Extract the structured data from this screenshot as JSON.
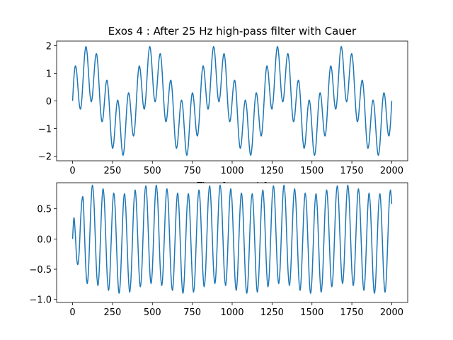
{
  "chart_data": [
    {
      "type": "line",
      "title": "Exos 4 : After 25 Hz high-pass filter with Cauer",
      "x_label": "Time [seconds]",
      "x": [
        0,
        8.33,
        16.67,
        25,
        33.33,
        41.67,
        50,
        58.33,
        66.67,
        75,
        83.33,
        91.67,
        100,
        108.33,
        116.67,
        125,
        133.33,
        141.67,
        150,
        158.33,
        166.67,
        175,
        183.33,
        191.67,
        200,
        208.33,
        216.67,
        225,
        233.33,
        241.67,
        250,
        258.33,
        266.67,
        275,
        283.33,
        291.67,
        300,
        308.33,
        316.67,
        325,
        333.33,
        341.67,
        350,
        358.33,
        366.67,
        375,
        383.33,
        391.67,
        400,
        408.33,
        416.67,
        425,
        433.33,
        441.67,
        450,
        458.33,
        466.67,
        475,
        483.33,
        491.67,
        500,
        508.33,
        516.67,
        525,
        533.33,
        541.67,
        550,
        558.33,
        566.67,
        575,
        583.33,
        591.67,
        600,
        608.33,
        616.67,
        625,
        633.33,
        641.67,
        650,
        658.33,
        666.67,
        675,
        683.33,
        691.67,
        700,
        708.33,
        716.67,
        725,
        733.33,
        741.67,
        750,
        758.33,
        766.67,
        775,
        783.33,
        791.67,
        800,
        808.33,
        816.67,
        825,
        833.33,
        841.67,
        850,
        858.33,
        866.67,
        875,
        883.33,
        891.67,
        900,
        908.33,
        916.67,
        925,
        933.33,
        941.67,
        950,
        958.33,
        966.67,
        975,
        983.33,
        991.67,
        1000,
        1008.33,
        1016.67,
        1025,
        1033.33,
        1041.67,
        1050,
        1058.33,
        1066.67,
        1075,
        1083.33,
        1091.67,
        1100,
        1108.33,
        1116.67,
        1125,
        1133.33,
        1141.67,
        1150,
        1158.33,
        1166.67,
        1175,
        1183.33,
        1191.67,
        1200,
        1208.33,
        1216.67,
        1225,
        1233.33,
        1241.67,
        1250,
        1258.33,
        1266.67,
        1275,
        1283.33,
        1291.67,
        1300,
        1308.33,
        1316.67,
        1325,
        1333.33,
        1341.67,
        1350,
        1358.33,
        1366.67,
        1375,
        1383.33,
        1391.67,
        1400,
        1408.33,
        1416.67,
        1425,
        1433.33,
        1441.67,
        1450,
        1458.33,
        1466.67,
        1475,
        1483.33,
        1491.67,
        1500,
        1508.33,
        1516.67,
        1525,
        1533.33,
        1541.67,
        1550,
        1558.33,
        1566.67,
        1575,
        1583.33,
        1591.67,
        1600,
        1608.33,
        1616.67,
        1625,
        1633.33,
        1641.67,
        1650,
        1658.33,
        1666.67,
        1675,
        1683.33,
        1691.67,
        1700,
        1708.33,
        1716.67,
        1725,
        1733.33,
        1741.67,
        1750,
        1758.33,
        1766.67,
        1775,
        1783.33,
        1791.67,
        1800,
        1808.33,
        1816.67,
        1825,
        1833.33,
        1841.67,
        1850,
        1858.33,
        1866.67,
        1875,
        1883.33,
        1891.67,
        1900,
        1908.33,
        1916.67,
        1925,
        1933.33,
        1941.67,
        1950,
        1958.33,
        1966.67,
        1975,
        1983.33,
        1991.67,
        2000
      ],
      "series": [
        {
          "color": "#1f77b4",
          "values": [
            0,
            0.84,
            1.26,
            1.09,
            0.5,
            -0.1,
            -0.29,
            0.09,
            0.87,
            1.63,
            1.97,
            1.7,
            1,
            0.28,
            -0.03,
            0.22,
            0.87,
            1.5,
            1.71,
            1.32,
            0.5,
            -0.32,
            -0.74,
            -0.58,
            0,
            0.58,
            0.74,
            0.32,
            -0.5,
            -1.32,
            -1.71,
            -1.5,
            -0.87,
            -0.22,
            0.03,
            -0.28,
            -1,
            -1.7,
            -1.97,
            -1.63,
            -0.87,
            -0.09,
            0.29,
            0.1,
            -0.5,
            -1.09,
            -1.26,
            -0.84,
            0,
            0.84,
            1.26,
            1.09,
            0.5,
            -0.1,
            -0.29,
            0.09,
            0.87,
            1.63,
            1.97,
            1.7,
            1,
            0.28,
            -0.03,
            0.22,
            0.87,
            1.5,
            1.71,
            1.32,
            0.5,
            -0.32,
            -0.74,
            -0.58,
            0,
            0.58,
            0.74,
            0.32,
            -0.5,
            -1.32,
            -1.71,
            -1.5,
            -0.87,
            -0.22,
            0.03,
            -0.28,
            -1,
            -1.7,
            -1.97,
            -1.63,
            -0.87,
            -0.09,
            0.29,
            0.1,
            -0.5,
            -1.09,
            -1.26,
            -0.84,
            0,
            0.84,
            1.26,
            1.09,
            0.5,
            -0.1,
            -0.29,
            0.09,
            0.87,
            1.63,
            1.97,
            1.7,
            1,
            0.28,
            -0.03,
            0.22,
            0.87,
            1.5,
            1.71,
            1.32,
            0.5,
            -0.32,
            -0.74,
            -0.58,
            0,
            0.58,
            0.74,
            0.32,
            -0.5,
            -1.32,
            -1.71,
            -1.5,
            -0.87,
            -0.22,
            0.03,
            -0.28,
            -1,
            -1.7,
            -1.97,
            -1.63,
            -0.87,
            -0.09,
            0.29,
            0.1,
            -0.5,
            -1.09,
            -1.26,
            -0.84,
            0,
            0.84,
            1.26,
            1.09,
            0.5,
            -0.1,
            -0.29,
            0.09,
            0.87,
            1.63,
            1.97,
            1.7,
            1,
            0.28,
            -0.03,
            0.22,
            0.87,
            1.5,
            1.71,
            1.32,
            0.5,
            -0.32,
            -0.74,
            -0.58,
            0,
            0.58,
            0.74,
            0.32,
            -0.5,
            -1.32,
            -1.71,
            -1.5,
            -0.87,
            -0.22,
            0.03,
            -0.28,
            -1,
            -1.7,
            -1.97,
            -1.63,
            -0.87,
            -0.09,
            0.29,
            0.1,
            -0.5,
            -1.09,
            -1.26,
            -0.84,
            0,
            0.84,
            1.26,
            1.09,
            0.5,
            -0.1,
            -0.29,
            0.09,
            0.87,
            1.63,
            1.97,
            1.7,
            1,
            0.28,
            -0.03,
            0.22,
            0.87,
            1.5,
            1.71,
            1.32,
            0.5,
            -0.32,
            -0.74,
            -0.58,
            0,
            0.58,
            0.74,
            0.32,
            -0.5,
            -1.32,
            -1.71,
            -1.5,
            -0.87,
            -0.22,
            0.03,
            -0.28,
            -1,
            -1.7,
            -1.97,
            -1.63,
            -0.87,
            -0.09,
            0.29,
            0.1,
            -0.5,
            -1.09,
            -1.26,
            -0.84,
            0
          ]
        }
      ],
      "xlim": [
        -100,
        2100
      ],
      "xticks": [
        0,
        250,
        500,
        750,
        1000,
        1250,
        1500,
        1750,
        2000
      ],
      "ylim": [
        -2.17,
        2.17
      ],
      "yticks": [
        {
          "value": -2,
          "label": "−2"
        },
        {
          "value": -1,
          "label": "−1"
        },
        0,
        1,
        2
      ]
    },
    {
      "type": "line",
      "x": [
        0,
        8.33,
        16.67,
        25,
        33.33,
        41.67,
        50,
        58.33,
        66.67,
        75,
        83.33,
        91.67,
        100,
        108.33,
        116.67,
        125,
        133.33,
        141.67,
        150,
        158.33,
        166.67,
        175,
        183.33,
        191.67,
        200,
        208.33,
        216.67,
        225,
        233.33,
        241.67,
        250,
        258.33,
        266.67,
        275,
        283.33,
        291.67,
        300,
        308.33,
        316.67,
        325,
        333.33,
        341.67,
        350,
        358.33,
        366.67,
        375,
        383.33,
        391.67,
        400,
        408.33,
        416.67,
        425,
        433.33,
        441.67,
        450,
        458.33,
        466.67,
        475,
        483.33,
        491.67,
        500,
        508.33,
        516.67,
        525,
        533.33,
        541.67,
        550,
        558.33,
        566.67,
        575,
        583.33,
        591.67,
        600,
        608.33,
        616.67,
        625,
        633.33,
        641.67,
        650,
        658.33,
        666.67,
        675,
        683.33,
        691.67,
        700,
        708.33,
        716.67,
        725,
        733.33,
        741.67,
        750,
        758.33,
        766.67,
        775,
        783.33,
        791.67,
        800,
        808.33,
        816.67,
        825,
        833.33,
        841.67,
        850,
        858.33,
        866.67,
        875,
        883.33,
        891.67,
        900,
        908.33,
        916.67,
        925,
        933.33,
        941.67,
        950,
        958.33,
        966.67,
        975,
        983.33,
        991.67,
        1000,
        1008.33,
        1016.67,
        1025,
        1033.33,
        1041.67,
        1050,
        1058.33,
        1066.67,
        1075,
        1083.33,
        1091.67,
        1100,
        1108.33,
        1116.67,
        1125,
        1133.33,
        1141.67,
        1150,
        1158.33,
        1166.67,
        1175,
        1183.33,
        1191.67,
        1200,
        1208.33,
        1216.67,
        1225,
        1233.33,
        1241.67,
        1250,
        1258.33,
        1266.67,
        1275,
        1283.33,
        1291.67,
        1300,
        1308.33,
        1316.67,
        1325,
        1333.33,
        1341.67,
        1350,
        1358.33,
        1366.67,
        1375,
        1383.33,
        1391.67,
        1400,
        1408.33,
        1416.67,
        1425,
        1433.33,
        1441.67,
        1450,
        1458.33,
        1466.67,
        1475,
        1483.33,
        1491.67,
        1500,
        1508.33,
        1516.67,
        1525,
        1533.33,
        1541.67,
        1550,
        1558.33,
        1566.67,
        1575,
        1583.33,
        1591.67,
        1600,
        1608.33,
        1616.67,
        1625,
        1633.33,
        1641.67,
        1650,
        1658.33,
        1666.67,
        1675,
        1683.33,
        1691.67,
        1700,
        1708.33,
        1716.67,
        1725,
        1733.33,
        1741.67,
        1750,
        1758.33,
        1766.67,
        1775,
        1783.33,
        1791.67,
        1800,
        1808.33,
        1816.67,
        1825,
        1833.33,
        1841.67,
        1850,
        1858.33,
        1866.67,
        1875,
        1883.33,
        1891.67,
        1900,
        1908.33,
        1916.67,
        1925,
        1933.33,
        1941.67,
        1950,
        1958.33,
        1966.67,
        1975,
        1983.33,
        1991.67,
        2000
      ],
      "series": [
        {
          "color": "#1f77b4",
          "values": [
            0,
            0.35,
            0.1,
            -0.3,
            -0.42,
            -0.2,
            0.3,
            0.63,
            0.65,
            0.07,
            -0.5,
            -0.74,
            -0.5,
            0.08,
            0.66,
            0.89,
            0.65,
            0.06,
            -0.52,
            -0.77,
            -0.54,
            0.03,
            0.6,
            0.83,
            0.58,
            -0.01,
            -0.6,
            -0.85,
            -0.62,
            -0.05,
            0.52,
            0.76,
            0.51,
            -0.07,
            -0.66,
            -0.9,
            -0.66,
            -0.08,
            0.5,
            0.75,
            0.51,
            -0.06,
            -0.64,
            -0.88,
            -0.62,
            -0.03,
            0.56,
            0.81,
            0.58,
            0.01,
            -0.56,
            -0.79,
            -0.54,
            0.05,
            0.64,
            0.88,
            0.65,
            0.07,
            -0.5,
            -0.74,
            -0.5,
            0.08,
            0.66,
            0.89,
            0.65,
            0.06,
            -0.52,
            -0.77,
            -0.54,
            0.03,
            0.6,
            0.83,
            0.58,
            -0.01,
            -0.6,
            -0.85,
            -0.62,
            -0.05,
            0.52,
            0.76,
            0.51,
            -0.07,
            -0.66,
            -0.9,
            -0.66,
            -0.08,
            0.5,
            0.75,
            0.51,
            -0.06,
            -0.64,
            -0.88,
            -0.62,
            -0.03,
            0.56,
            0.81,
            0.58,
            0.01,
            -0.56,
            -0.79,
            -0.54,
            0.05,
            0.64,
            0.88,
            0.65,
            0.07,
            -0.5,
            -0.74,
            -0.5,
            0.08,
            0.66,
            0.89,
            0.65,
            0.06,
            -0.52,
            -0.77,
            -0.54,
            0.03,
            0.6,
            0.83,
            0.58,
            -0.01,
            -0.6,
            -0.85,
            -0.62,
            -0.05,
            0.52,
            0.76,
            0.51,
            -0.07,
            -0.66,
            -0.9,
            -0.66,
            -0.08,
            0.5,
            0.75,
            0.51,
            -0.06,
            -0.64,
            -0.88,
            -0.62,
            -0.03,
            0.56,
            0.81,
            0.58,
            0.01,
            -0.56,
            -0.79,
            -0.54,
            0.05,
            0.64,
            0.88,
            0.65,
            0.07,
            -0.5,
            -0.74,
            -0.5,
            0.08,
            0.66,
            0.89,
            0.65,
            0.06,
            -0.52,
            -0.77,
            -0.54,
            0.03,
            0.6,
            0.83,
            0.58,
            -0.01,
            -0.6,
            -0.85,
            -0.62,
            -0.05,
            0.52,
            0.76,
            0.51,
            -0.07,
            -0.66,
            -0.9,
            -0.66,
            -0.08,
            0.5,
            0.75,
            0.51,
            -0.06,
            -0.64,
            -0.88,
            -0.62,
            -0.03,
            0.56,
            0.81,
            0.58,
            0.01,
            -0.56,
            -0.79,
            -0.54,
            0.05,
            0.64,
            0.88,
            0.65,
            0.07,
            -0.5,
            -0.74,
            -0.5,
            0.08,
            0.66,
            0.89,
            0.65,
            0.06,
            -0.52,
            -0.77,
            -0.54,
            0.03,
            0.6,
            0.83,
            0.58,
            -0.01,
            -0.6,
            -0.85,
            -0.62,
            -0.05,
            0.52,
            0.76,
            0.51,
            -0.07,
            -0.66,
            -0.9,
            -0.66,
            -0.08,
            0.5,
            0.75,
            0.51,
            -0.06,
            -0.64,
            -0.88,
            -0.62,
            -0.03,
            0.56,
            0.81,
            0.58
          ]
        }
      ],
      "xlim": [
        -100,
        2100
      ],
      "xticks": [
        0,
        250,
        500,
        750,
        1000,
        1250,
        1500,
        1750,
        2000
      ],
      "ylim": [
        -1.05,
        0.93
      ],
      "yticks": [
        {
          "value": -1,
          "label": "−1.0"
        },
        {
          "value": -0.5,
          "label": "−0.5"
        },
        {
          "value": 0,
          "label": "0.0"
        },
        0.5
      ]
    }
  ]
}
